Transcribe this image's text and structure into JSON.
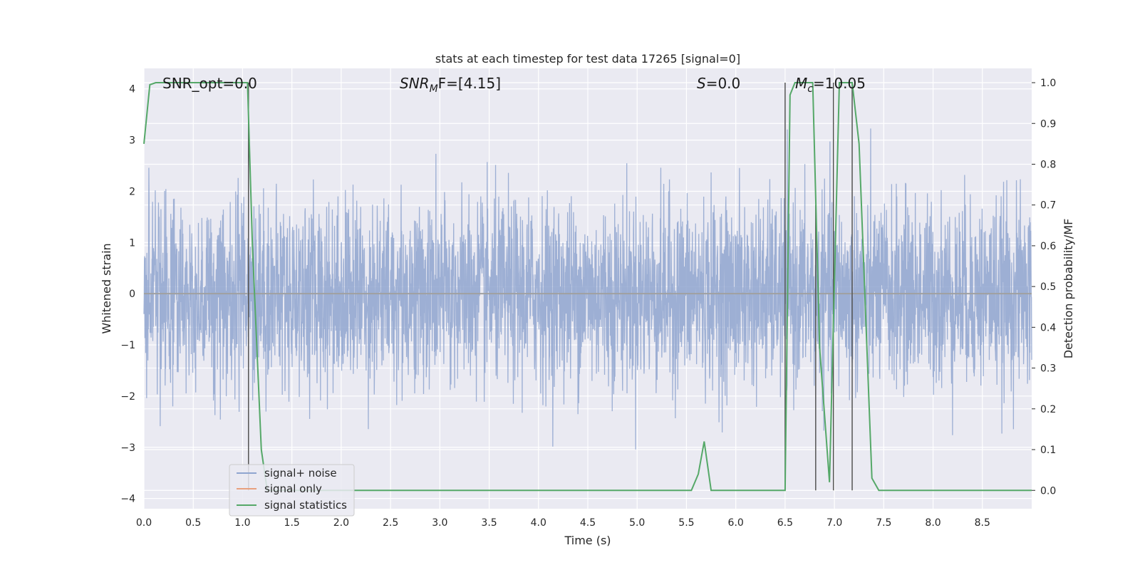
{
  "chart_data": {
    "type": "line",
    "title": "stats at each timestep for test data 17265 [signal=0]",
    "xlabel": "Time (s)",
    "ylabel": "Whitened strain",
    "ylabel_right": "Detection probability/MF",
    "xlim": [
      0.0,
      9.0
    ],
    "ylim": [
      -4.2,
      4.4
    ],
    "ylim_right": [
      -0.045,
      1.035
    ],
    "x_ticks": [
      "0.0",
      "0.5",
      "1.0",
      "1.5",
      "2.0",
      "2.5",
      "3.0",
      "3.5",
      "4.0",
      "4.5",
      "5.0",
      "5.5",
      "6.0",
      "6.5",
      "7.0",
      "7.5",
      "8.0",
      "8.5"
    ],
    "y_ticks": [
      "4",
      "3",
      "2",
      "1",
      "0",
      "−1",
      "−2",
      "−3",
      "−4"
    ],
    "y_ticks_right": [
      "1.0",
      "0.9",
      "0.8",
      "0.7",
      "0.6",
      "0.5",
      "0.4",
      "0.3",
      "0.2",
      "0.1",
      "0.0"
    ],
    "annotations": {
      "snr_opt": "SNR_opt=0.0",
      "snr_mf_main": "SNR",
      "snr_mf_sub": "M",
      "snr_mf_rest": "F=[4.15]",
      "s_main": "S",
      "s_rest": "=0.0",
      "mc_main": "M",
      "mc_sub": "c",
      "mc_rest": "=10.05"
    },
    "grid": true,
    "legend_position": "lower-left",
    "series": [
      {
        "name": "signal+ noise",
        "color": "#8fa5cf",
        "kind": "noise",
        "sample_rate": 400,
        "spread": 0.9,
        "amplitude_range": [
          -3.9,
          3.9
        ]
      },
      {
        "name": "signal only",
        "color": "#e8a07e",
        "x": [
          0.0,
          9.0
        ],
        "y": [
          0.0,
          0.0
        ]
      },
      {
        "name": "signal statistics",
        "color": "#55a868",
        "axis": "right",
        "x": [
          0.0,
          0.06,
          0.12,
          1.05,
          1.1,
          1.19,
          1.25,
          5.55,
          5.62,
          5.68,
          5.75,
          6.5,
          6.55,
          6.6,
          6.78,
          6.85,
          6.95,
          7.05,
          7.18,
          7.25,
          7.38,
          7.45,
          9.0
        ],
        "y": [
          0.85,
          0.995,
          1.0,
          1.0,
          0.6,
          0.1,
          0.0,
          0.0,
          0.04,
          0.12,
          0.0,
          0.0,
          0.97,
          1.0,
          1.0,
          0.35,
          0.02,
          1.0,
          1.0,
          0.85,
          0.03,
          0.0,
          0.0
        ]
      }
    ],
    "vertical_markers": {
      "color": "#555555",
      "x": [
        1.06,
        6.5,
        6.81,
        6.99,
        7.18
      ],
      "y_top": [
        1.0,
        1.0,
        0.7,
        1.0,
        1.0
      ]
    }
  }
}
